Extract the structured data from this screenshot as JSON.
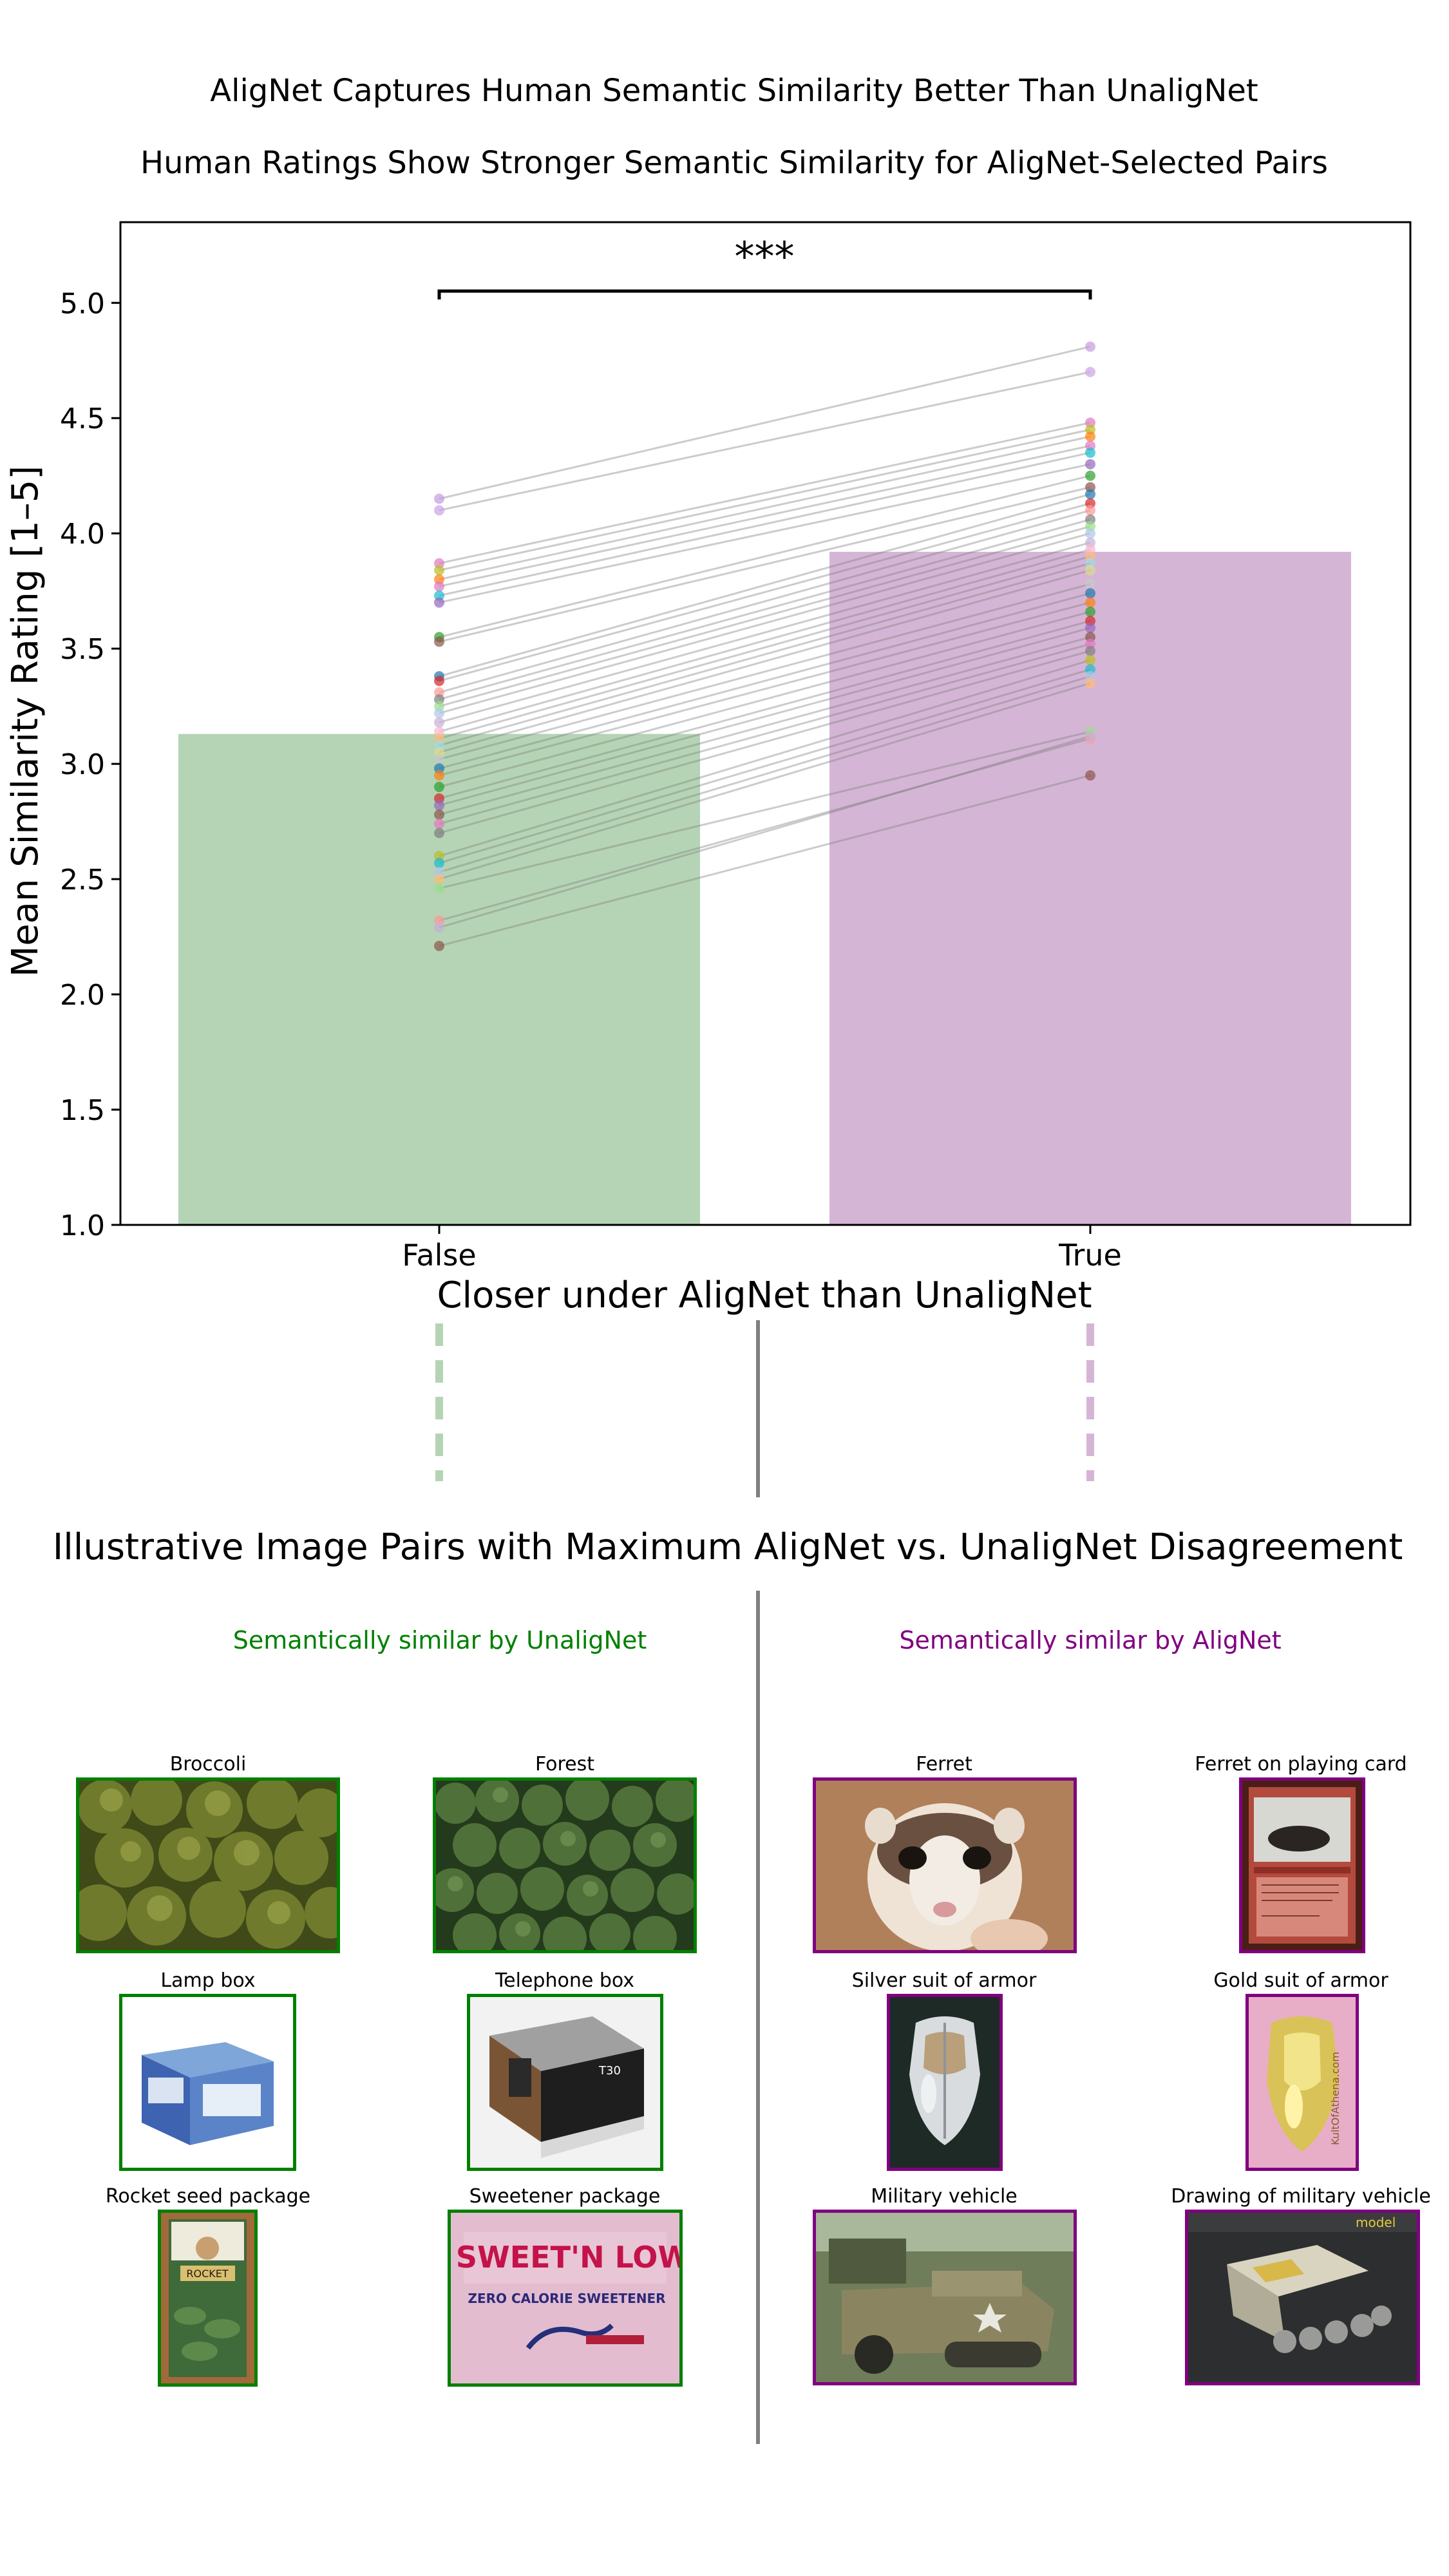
{
  "figure": {
    "title": "AligNet Captures Human Semantic Similarity Better Than UnaligNet",
    "gallery_title": "Illustrative Image Pairs with Maximum AligNet vs. UnaligNet Disagreement",
    "left_header": "Semantically similar by UnaligNet",
    "right_header": "Semantically similar by AligNet"
  },
  "chart_data": {
    "type": "bar",
    "title": "Human Ratings Show Stronger Semantic Similarity for AligNet-Selected Pairs",
    "xlabel": "Closer under AligNet than UnaligNet",
    "ylabel": "Mean Similarity Rating [1–5]",
    "categories": [
      "False",
      "True"
    ],
    "values": [
      3.13,
      3.92
    ],
    "ylim": [
      1.0,
      5.35
    ],
    "yticks": [
      "1.0",
      "1.5",
      "2.0",
      "2.5",
      "3.0",
      "3.5",
      "4.0",
      "4.5",
      "5.0"
    ],
    "colors": [
      "#b5d4b5",
      "#d5b5d5"
    ],
    "grid": false,
    "significance": "***",
    "paired_points": {
      "false": [
        4.15,
        4.1,
        3.87,
        3.84,
        3.8,
        3.77,
        3.73,
        3.7,
        3.55,
        3.53,
        3.38,
        3.36,
        3.31,
        3.28,
        3.25,
        3.22,
        3.18,
        3.14,
        3.11,
        3.08,
        3.05,
        3.02,
        2.98,
        2.95,
        2.9,
        2.85,
        2.82,
        2.78,
        2.74,
        2.7,
        2.6,
        2.57,
        2.53,
        2.5,
        2.46,
        2.32,
        2.29,
        2.21
      ],
      "true": [
        4.81,
        4.7,
        4.48,
        4.45,
        4.42,
        4.38,
        4.35,
        4.3,
        4.25,
        4.2,
        4.17,
        4.13,
        4.1,
        4.06,
        4.03,
        4.0,
        3.96,
        3.93,
        3.9,
        3.87,
        3.84,
        3.78,
        3.74,
        3.7,
        3.66,
        3.62,
        3.59,
        3.55,
        3.52,
        3.49,
        3.45,
        3.41,
        3.38,
        3.35,
        3.14,
        3.11,
        3.12,
        2.95
      ],
      "colors": [
        "#c49be0",
        "#c9a3e8",
        "#e377c2",
        "#bcbd22",
        "#ff7f0e",
        "#e377c2",
        "#17becf",
        "#9467bd",
        "#2ca02c",
        "#8c564b",
        "#1f77b4",
        "#d62728",
        "#ff9896",
        "#7f7f7f",
        "#98df8a",
        "#aec7e8",
        "#c5b0d5",
        "#f7b6d2",
        "#ffbb78",
        "#9edae5",
        "#dbdb8d",
        "#c7c7c7",
        "#1f77b4",
        "#ff7f0e",
        "#2ca02c",
        "#d62728",
        "#9467bd",
        "#8c564b",
        "#e377c2",
        "#7f7f7f",
        "#bcbd22",
        "#17becf",
        "#aec7e8",
        "#ffbb78",
        "#98df8a",
        "#ff9896",
        "#c5b0d5",
        "#8c564b"
      ]
    }
  },
  "pairs": {
    "unalignet": [
      {
        "left": "Broccoli",
        "right": "Forest"
      },
      {
        "left": "Lamp box",
        "right": "Telephone box"
      },
      {
        "left": "Rocket seed package",
        "right": "Sweetener package"
      }
    ],
    "alignet": [
      {
        "left": "Ferret",
        "right": "Ferret on playing card"
      },
      {
        "left": "Silver suit of armor",
        "right": "Gold suit of armor"
      },
      {
        "left": "Military vehicle",
        "right": "Drawing of military vehicle"
      }
    ]
  },
  "image_text": {
    "sweetener_brand": "SWEET'N LOW",
    "sweetener_tagline": "ZERO CALORIE SWEETENER",
    "rocket_label": "ROCKET",
    "card_watermark": "KultOfAthena.com",
    "model_kit_brand": "model"
  }
}
